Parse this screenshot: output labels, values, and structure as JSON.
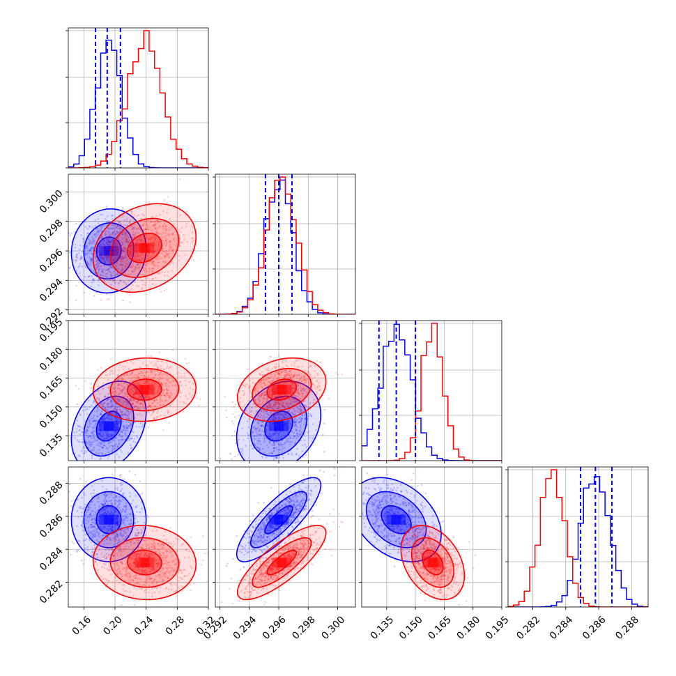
{
  "chart_data": {
    "type": "corner",
    "title": "",
    "grid": true,
    "parameters": [
      {
        "range": [
          0.14,
          0.32
        ],
        "ticks": [
          0.16,
          0.2,
          0.24,
          0.28,
          0.32
        ],
        "tick_labels": [
          "0.16",
          "0.20",
          "0.24",
          "0.28",
          "0.32"
        ]
      },
      {
        "range": [
          0.2917,
          0.3012
        ],
        "ticks": [
          0.292,
          0.294,
          0.296,
          0.298,
          0.3
        ],
        "tick_labels": [
          "0.292",
          "0.294",
          "0.296",
          "0.298",
          "0.300"
        ]
      },
      {
        "range": [
          0.122,
          0.195
        ],
        "ticks": [
          0.135,
          0.15,
          0.165,
          0.18,
          0.195
        ],
        "tick_labels": [
          "0.135",
          "0.150",
          "0.165",
          "0.180",
          "0.195"
        ]
      },
      {
        "range": [
          0.2805,
          0.289
        ],
        "ticks": [
          0.282,
          0.284,
          0.286,
          0.288
        ],
        "tick_labels": [
          "0.282",
          "0.284",
          "0.286",
          "0.288"
        ]
      }
    ],
    "series": [
      {
        "color": "#0000ff",
        "mean": [
          0.192,
          0.296,
          0.14,
          0.2858
        ],
        "sigma": [
          0.016,
          0.00095,
          0.0078,
          0.00085
        ],
        "correlation": [
          [
            1.0,
            0.05,
            0.3,
            0.0
          ],
          [
            0.05,
            1.0,
            0.25,
            0.82
          ],
          [
            0.3,
            0.25,
            1.0,
            -0.35
          ],
          [
            0.0,
            0.82,
            -0.35,
            1.0
          ]
        ],
        "quantiles": [
          [
            0.175,
            0.19,
            0.207
          ],
          [
            0.2951,
            0.296,
            0.2969
          ],
          [
            0.131,
            0.14,
            0.15
          ],
          [
            0.2849,
            0.2858,
            0.2868
          ]
        ]
      },
      {
        "color": "#ff0000",
        "mean": [
          0.238,
          0.2962,
          0.159,
          0.2832
        ],
        "sigma": [
          0.022,
          0.001,
          0.0055,
          0.00075
        ],
        "correlation": [
          [
            1.0,
            0.25,
            0.05,
            -0.05
          ],
          [
            0.25,
            1.0,
            0.25,
            0.8
          ],
          [
            0.05,
            0.25,
            1.0,
            -0.35
          ],
          [
            -0.05,
            0.8,
            -0.35,
            1.0
          ]
        ]
      }
    ]
  }
}
